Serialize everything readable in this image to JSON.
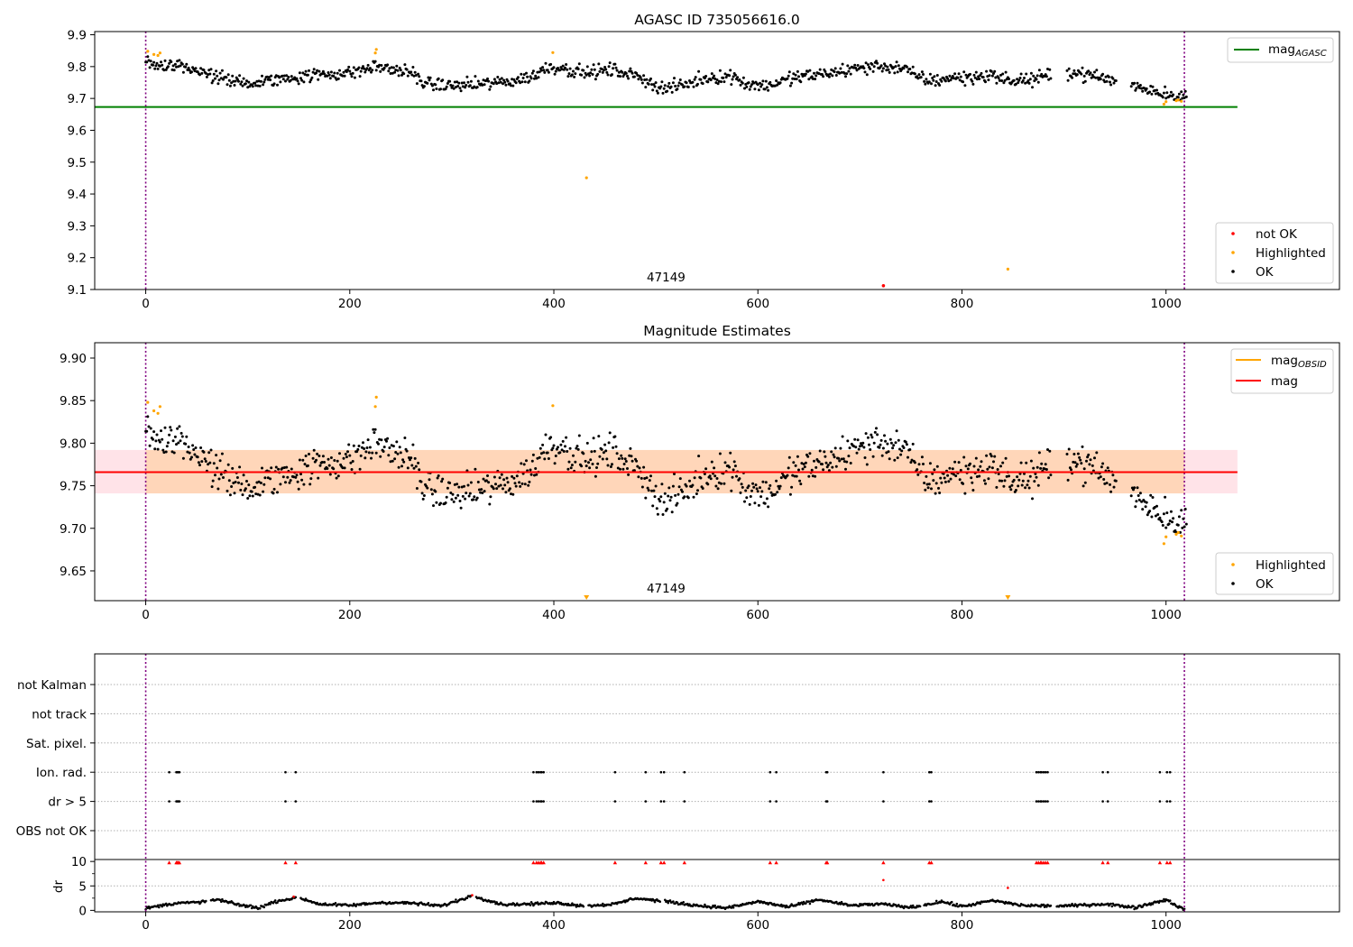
{
  "chart_data": [
    {
      "type": "scatter",
      "title": "AGASC ID 735056616.0",
      "xlim": [
        -50,
        1170
      ],
      "ylim": [
        9.1,
        9.91
      ],
      "xticks": [
        0,
        200,
        400,
        600,
        800,
        1000
      ],
      "xtick_labels": [
        "0",
        "200",
        "400",
        "600",
        "800",
        "1000"
      ],
      "yticks": [
        9.1,
        9.2,
        9.3,
        9.4,
        9.5,
        9.6,
        9.7,
        9.8,
        9.9
      ],
      "ytick_labels": [
        "9.1",
        "9.2",
        "9.3",
        "9.4",
        "9.5",
        "9.6",
        "9.7",
        "9.8",
        "9.9"
      ],
      "vlines": [
        0,
        1018
      ],
      "annotation": {
        "x": 510,
        "text": "47149"
      },
      "hline": {
        "y": 9.673,
        "x_range": [
          -50,
          1070
        ],
        "color": "#008000"
      },
      "legend_top": {
        "entries": [
          {
            "kind": "line",
            "label": "mag",
            "sub": "AGASC",
            "color": "#008000"
          }
        ],
        "placement": "upper right"
      },
      "legend_bottom": {
        "entries": [
          {
            "label": "not OK",
            "color": "#ff0000"
          },
          {
            "label": "Highlighted",
            "color": "#ffa500"
          },
          {
            "label": "OK",
            "color": "#000000"
          }
        ],
        "placement": "lower right"
      },
      "ok_series": {
        "name": "OK",
        "color": "#000000",
        "x_range": [
          0,
          1020
        ],
        "gaps": [
          [
            888,
            902
          ],
          [
            952,
            965
          ]
        ],
        "nodes": [
          [
            0,
            9.82
          ],
          [
            15,
            9.8
          ],
          [
            30,
            9.81
          ],
          [
            45,
            9.79
          ],
          [
            60,
            9.775
          ],
          [
            80,
            9.76
          ],
          [
            100,
            9.745
          ],
          [
            120,
            9.755
          ],
          [
            140,
            9.765
          ],
          [
            170,
            9.775
          ],
          [
            200,
            9.78
          ],
          [
            225,
            9.8
          ],
          [
            245,
            9.79
          ],
          [
            260,
            9.78
          ],
          [
            275,
            9.745
          ],
          [
            300,
            9.74
          ],
          [
            330,
            9.745
          ],
          [
            360,
            9.755
          ],
          [
            380,
            9.77
          ],
          [
            395,
            9.8
          ],
          [
            410,
            9.795
          ],
          [
            430,
            9.78
          ],
          [
            460,
            9.79
          ],
          [
            490,
            9.76
          ],
          [
            505,
            9.73
          ],
          [
            525,
            9.74
          ],
          [
            550,
            9.765
          ],
          [
            575,
            9.77
          ],
          [
            590,
            9.745
          ],
          [
            610,
            9.74
          ],
          [
            635,
            9.765
          ],
          [
            660,
            9.775
          ],
          [
            690,
            9.79
          ],
          [
            710,
            9.8
          ],
          [
            730,
            9.8
          ],
          [
            745,
            9.79
          ],
          [
            755,
            9.77
          ],
          [
            770,
            9.755
          ],
          [
            790,
            9.765
          ],
          [
            810,
            9.765
          ],
          [
            830,
            9.775
          ],
          [
            845,
            9.755
          ],
          [
            870,
            9.76
          ],
          [
            885,
            9.77
          ],
          [
            905,
            9.785
          ],
          [
            930,
            9.77
          ],
          [
            950,
            9.755
          ],
          [
            975,
            9.735
          ],
          [
            1000,
            9.715
          ],
          [
            1020,
            9.705
          ]
        ],
        "scatter": 0.018
      },
      "highlighted": [
        [
          2,
          9.848
        ],
        [
          8,
          9.838
        ],
        [
          12,
          9.835
        ],
        [
          14,
          9.843
        ],
        [
          225,
          9.843
        ],
        [
          226,
          9.854
        ],
        [
          399,
          9.844
        ],
        [
          432,
          9.451
        ],
        [
          845,
          9.164
        ],
        [
          998,
          9.682
        ],
        [
          1000,
          9.69
        ],
        [
          1010,
          9.693
        ],
        [
          1012,
          9.695
        ],
        [
          1015,
          9.691
        ]
      ],
      "not_ok": [
        [
          723,
          9.112
        ]
      ]
    },
    {
      "type": "scatter",
      "title": "Magnitude Estimates",
      "xlim": [
        -50,
        1170
      ],
      "ylim": [
        9.615,
        9.918
      ],
      "xticks": [
        0,
        200,
        400,
        600,
        800,
        1000
      ],
      "xtick_labels": [
        "0",
        "200",
        "400",
        "600",
        "800",
        "1000"
      ],
      "yticks": [
        9.65,
        9.7,
        9.75,
        9.8,
        9.85,
        9.9
      ],
      "ytick_labels": [
        "9.65",
        "9.70",
        "9.75",
        "9.80",
        "9.85",
        "9.90"
      ],
      "vlines": [
        0,
        1018
      ],
      "annotation": {
        "x": 510,
        "text": "47149"
      },
      "mag_line": {
        "y": 9.766,
        "x_range": [
          -50,
          1070
        ],
        "color": "#ff0000"
      },
      "mag_band": {
        "y_range": [
          9.741,
          9.792
        ],
        "x_range": [
          -50,
          1070
        ],
        "color": "#ffc0cb"
      },
      "obsid_band": {
        "y_range": [
          9.741,
          9.792
        ],
        "x_range": [
          0,
          1018
        ],
        "color": "#ffa500"
      },
      "legend_top": {
        "entries": [
          {
            "kind": "line",
            "label": "mag",
            "sub": "OBSID",
            "color": "#ffa500"
          },
          {
            "kind": "line",
            "label": "mag",
            "sub": "",
            "color": "#ff0000"
          }
        ],
        "placement": "upper right"
      },
      "legend_bottom": {
        "entries": [
          {
            "label": "Highlighted",
            "color": "#ffa500"
          },
          {
            "label": "OK",
            "color": "#000000"
          }
        ],
        "placement": "lower right"
      },
      "highlighted_offscale": [
        432,
        845
      ]
    },
    {
      "type": "scatter",
      "title": "",
      "xlim": [
        -50,
        1170
      ],
      "xticks": [
        0,
        200,
        400,
        600,
        800,
        1000
      ],
      "xtick_labels": [
        "0",
        "200",
        "400",
        "600",
        "800",
        "1000"
      ],
      "vlines": [
        0,
        1018
      ],
      "flag_rows": [
        "not Kalman",
        "not track",
        "Sat. pixel.",
        "Ion. rad.",
        "dr > 5",
        "OBS not OK"
      ],
      "flag_x": [
        23,
        30,
        31,
        32,
        33,
        137,
        147,
        380,
        383,
        385,
        387,
        388,
        390,
        460,
        490,
        505,
        508,
        528,
        612,
        618,
        667,
        668,
        723,
        768,
        770,
        873,
        875,
        877,
        878,
        880,
        882,
        884,
        938,
        943,
        994,
        1001,
        1004
      ],
      "flagged_rows": [
        "Ion. rad.",
        "dr > 5"
      ],
      "dr_ylabel": "dr",
      "dr_ylim": [
        -0.3,
        10.4
      ],
      "dr_yticks": [
        0,
        5,
        10
      ],
      "dr_ytick_labels": [
        "0",
        "5",
        "10"
      ],
      "dr_nodes": [
        [
          0,
          0.4
        ],
        [
          15,
          1.0
        ],
        [
          30,
          1.5
        ],
        [
          50,
          1.6
        ],
        [
          70,
          2.2
        ],
        [
          90,
          1.2
        ],
        [
          110,
          0.5
        ],
        [
          130,
          2.0
        ],
        [
          150,
          2.6
        ],
        [
          170,
          1.3
        ],
        [
          200,
          1.0
        ],
        [
          230,
          1.6
        ],
        [
          260,
          1.5
        ],
        [
          290,
          0.9
        ],
        [
          320,
          3.0
        ],
        [
          350,
          1.2
        ],
        [
          380,
          1.3
        ],
        [
          400,
          1.6
        ],
        [
          430,
          0.9
        ],
        [
          460,
          1.3
        ],
        [
          480,
          2.5
        ],
        [
          510,
          1.8
        ],
        [
          540,
          1.0
        ],
        [
          570,
          0.5
        ],
        [
          600,
          1.8
        ],
        [
          630,
          0.7
        ],
        [
          660,
          2.2
        ],
        [
          690,
          1.0
        ],
        [
          720,
          1.3
        ],
        [
          750,
          0.6
        ],
        [
          780,
          1.8
        ],
        [
          800,
          0.8
        ],
        [
          830,
          2.0
        ],
        [
          860,
          1.0
        ],
        [
          900,
          0.9
        ],
        [
          940,
          1.3
        ],
        [
          970,
          0.6
        ],
        [
          1000,
          2.2
        ],
        [
          1018,
          0.1
        ]
      ],
      "dr_outliers": [
        [
          723,
          6.2
        ],
        [
          845,
          4.6
        ]
      ],
      "dr_red_points": [
        [
          145,
          2.8
        ],
        [
          320,
          3.1
        ]
      ],
      "dr_red_level": 9.8,
      "dr_red_marker": "triangle"
    }
  ]
}
